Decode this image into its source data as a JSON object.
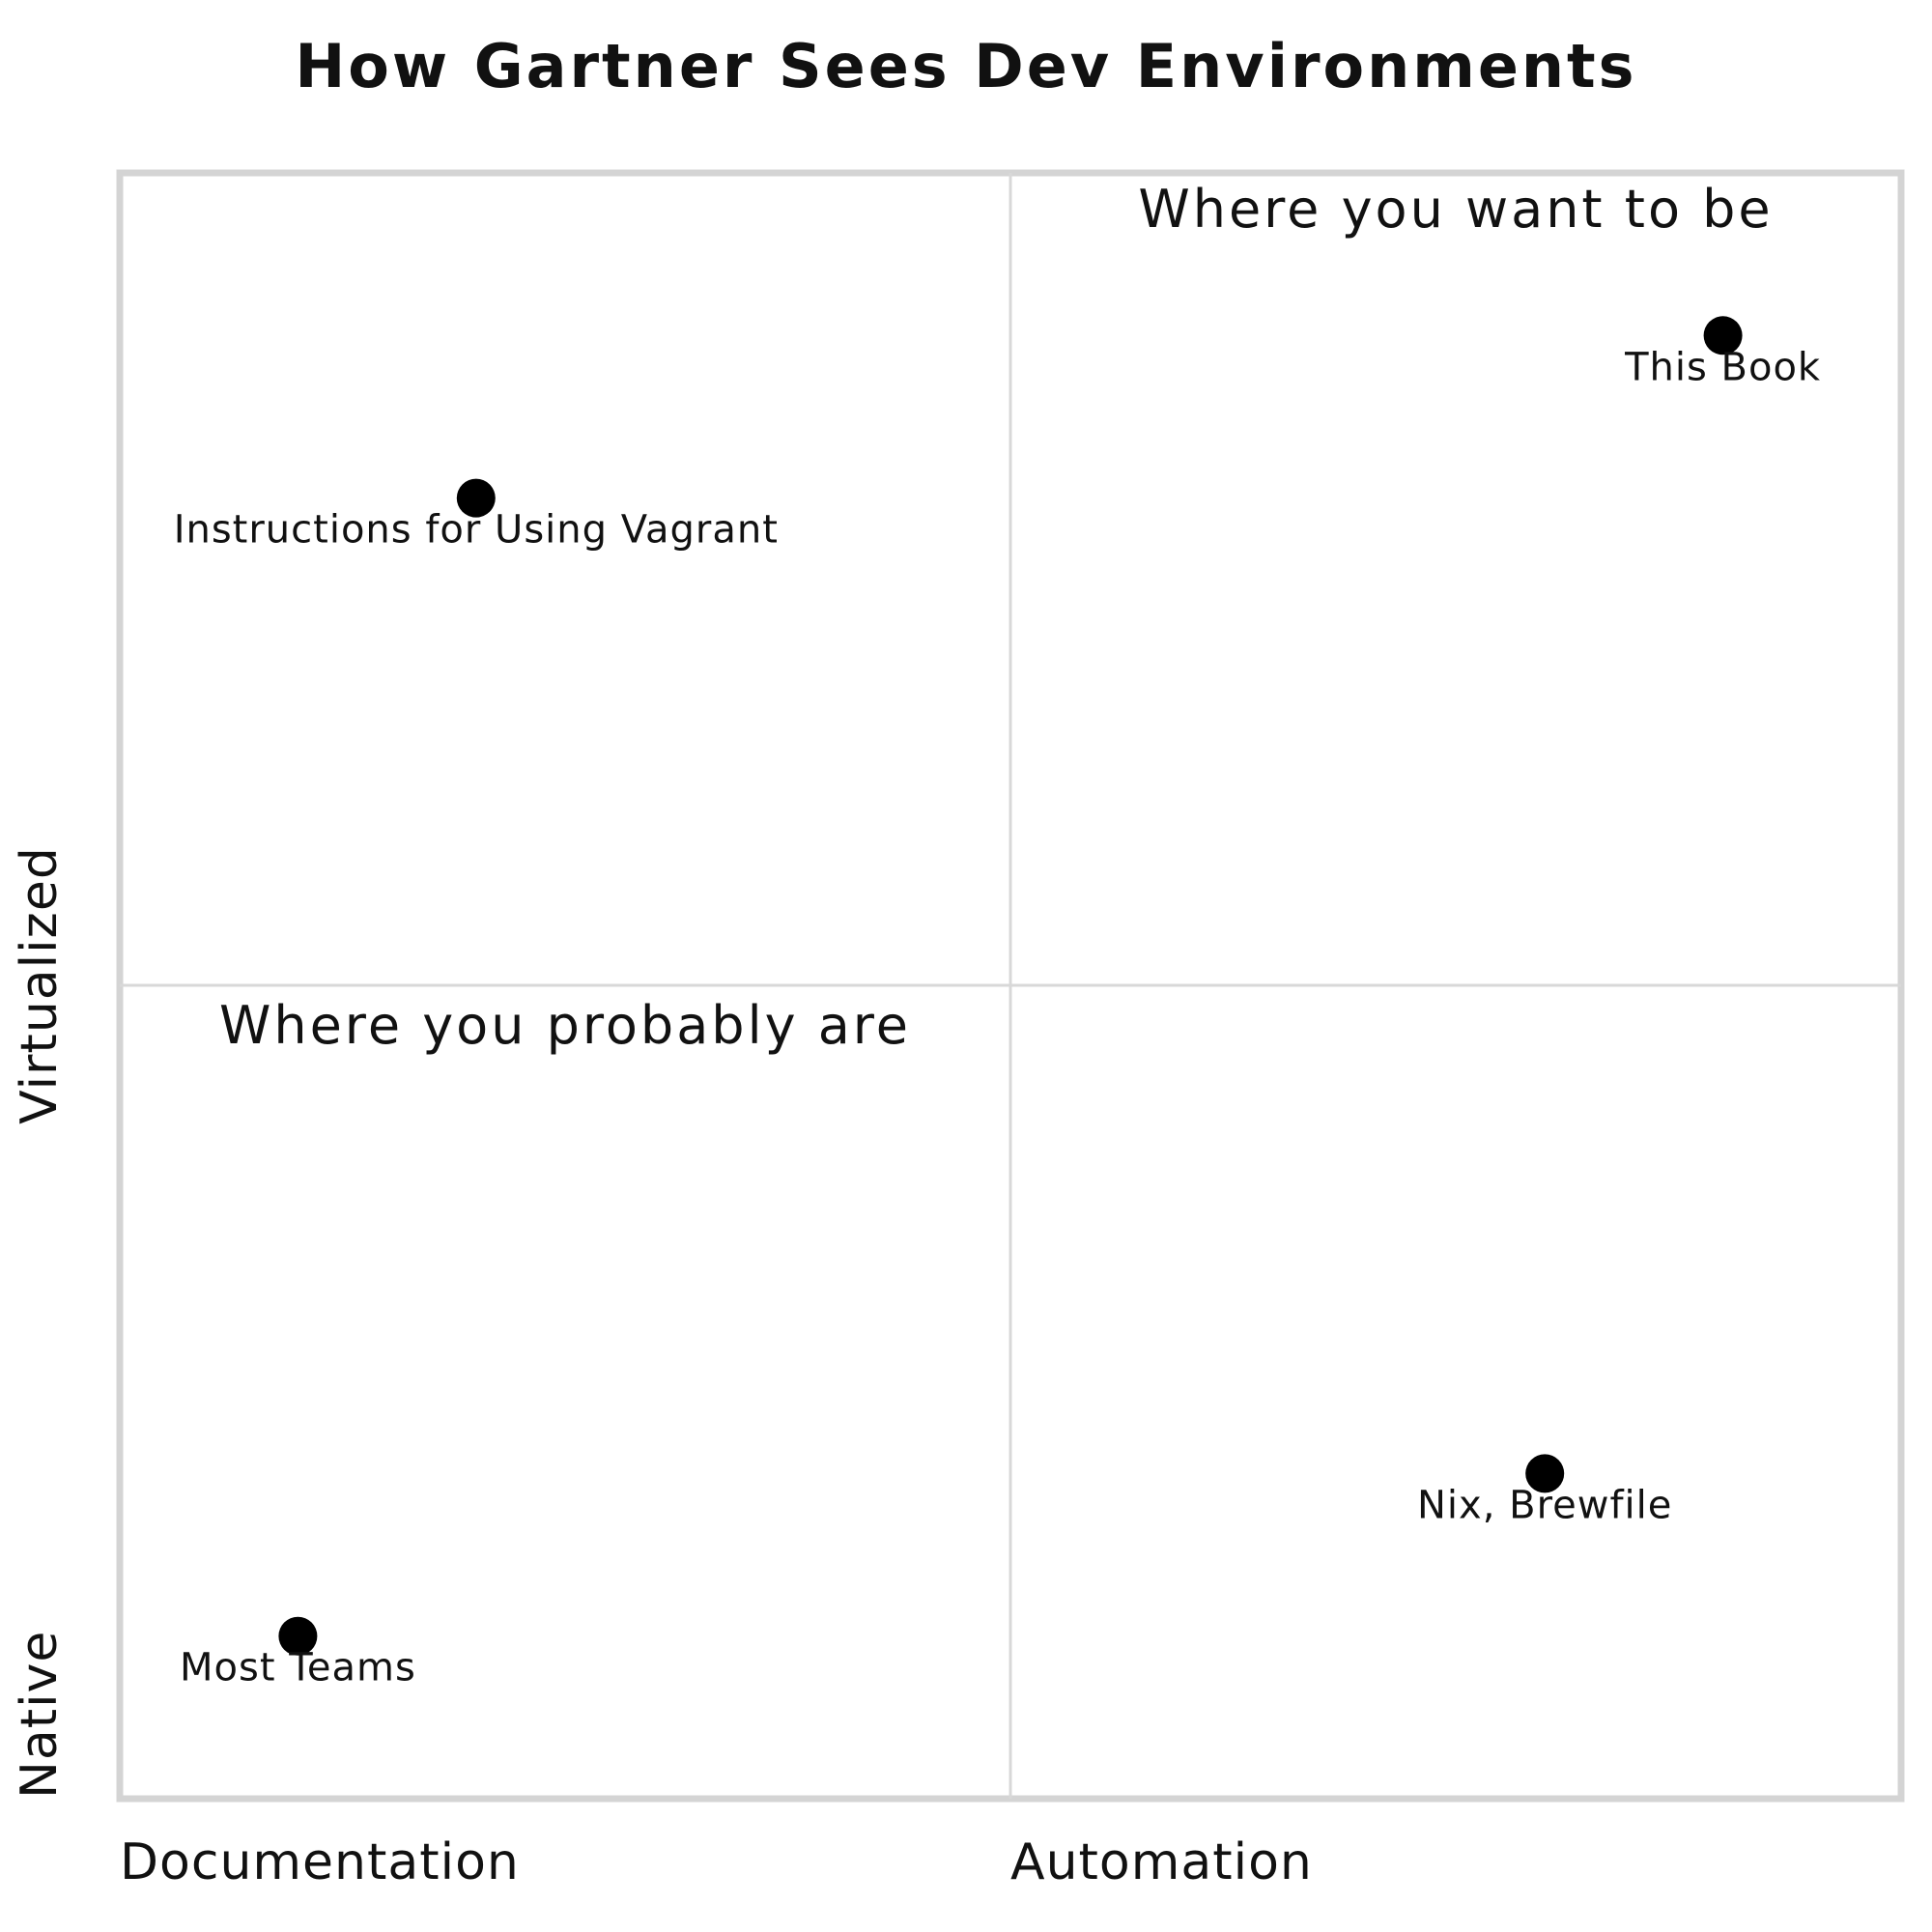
{
  "chart_data": {
    "type": "scatter",
    "title": "How Gartner Sees Dev Environments",
    "x_axis": {
      "low_label": "Documentation",
      "high_label": "Automation",
      "range": [
        0,
        1
      ]
    },
    "y_axis": {
      "low_label": "Native",
      "high_label": "Virtualized",
      "range": [
        0,
        1
      ]
    },
    "grid": true,
    "quadrant_labels": [
      {
        "quadrant": "top-right",
        "text": "Where you want to be"
      },
      {
        "quadrant": "bottom-left",
        "text": "Where you probably are"
      }
    ],
    "points": [
      {
        "label": "This Book",
        "x": 0.9,
        "y": 0.9
      },
      {
        "label": "Instructions for Using Vagrant",
        "x": 0.2,
        "y": 0.8
      },
      {
        "label": "Nix, Brewfile",
        "x": 0.8,
        "y": 0.2
      },
      {
        "label": "Most Teams",
        "x": 0.1,
        "y": 0.1
      }
    ]
  }
}
